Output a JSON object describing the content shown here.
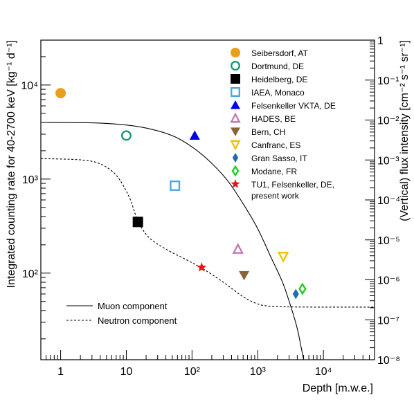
{
  "chart_data": {
    "type": "scatter",
    "xlabel": "Depth [m.w.e.]",
    "ylabel_left": "Integrated counting rate for 40-2700 keV [kg⁻¹ d⁻¹]",
    "ylabel_right": "(Vertical) flux intensity [cm⁻² s⁻¹ sr⁻¹]",
    "xscale": "log",
    "yscale": "log",
    "xlim": [
      0.5,
      60000
    ],
    "ylim_left": [
      12,
      30000
    ],
    "ylim_right": [
      1e-08,
      1
    ],
    "x_ticks": [
      {
        "value": 1,
        "label": "1"
      },
      {
        "value": 10,
        "label": "10"
      },
      {
        "value": 100,
        "label": "10²"
      },
      {
        "value": 1000,
        "label": "10³"
      },
      {
        "value": 10000,
        "label": "10⁴"
      }
    ],
    "y_left_ticks": [
      {
        "value": 100,
        "label": "10²"
      },
      {
        "value": 1000,
        "label": "10³"
      },
      {
        "value": 10000,
        "label": "10⁴"
      }
    ],
    "y_right_ticks": [
      {
        "value": 1e-08,
        "label": "10⁻⁸"
      },
      {
        "value": 1e-07,
        "label": "10⁻⁷"
      },
      {
        "value": 1e-06,
        "label": "10⁻⁶"
      },
      {
        "value": 1e-05,
        "label": "10⁻⁵"
      },
      {
        "value": 0.0001,
        "label": "10⁻⁴"
      },
      {
        "value": 0.001,
        "label": "10⁻³"
      },
      {
        "value": 0.01,
        "label": "10⁻²"
      },
      {
        "value": 0.1,
        "label": "10⁻¹"
      },
      {
        "value": 1,
        "label": "1"
      }
    ],
    "series": [
      {
        "name": "Seibersdorf, AT",
        "marker": "filled-circle",
        "color": "#e8a01a",
        "x": 1,
        "y": 8200
      },
      {
        "name": "Dortmund, DE",
        "marker": "open-circle",
        "color": "#1a9a74",
        "x": 10,
        "y": 2900
      },
      {
        "name": "Heidelberg, DE",
        "marker": "filled-square",
        "color": "#000000",
        "x": 15,
        "y": 350
      },
      {
        "name": "IAEA, Monaco",
        "marker": "open-square",
        "color": "#4aa9e0",
        "x": 55,
        "y": 850
      },
      {
        "name": "Felsenkeller VKTA, DE",
        "marker": "filled-triangle-up",
        "color": "#0000ee",
        "x": 110,
        "y": 2900
      },
      {
        "name": "HADES, BE",
        "marker": "open-triangle-up",
        "color": "#c47aaf",
        "x": 500,
        "y": 180
      },
      {
        "name": "Bern, CH",
        "marker": "filled-triangle-down",
        "color": "#8b6338",
        "x": 620,
        "y": 95
      },
      {
        "name": "Canfranc, ES",
        "marker": "open-triangle-down",
        "color": "#f2c200",
        "x": 2450,
        "y": 150
      },
      {
        "name": "Gran Sasso, IT",
        "marker": "filled-diamond",
        "color": "#1f6fb0",
        "x": 3800,
        "y": 60
      },
      {
        "name": "Modane, FR",
        "marker": "open-diamond",
        "color": "#22cc22",
        "x": 4800,
        "y": 68
      },
      {
        "name": "TU1, Felsenkeller, DE,",
        "name_line2": "present work",
        "marker": "star",
        "color": "#e81414",
        "x": 140,
        "y": 115
      }
    ],
    "curves": [
      {
        "name": "Muon component",
        "style": "solid",
        "axis": "right",
        "points": [
          [
            0.5,
            0.0087
          ],
          [
            3,
            0.0085
          ],
          [
            10,
            0.0075
          ],
          [
            25,
            0.0058
          ],
          [
            55,
            0.0038
          ],
          [
            110,
            0.0019
          ],
          [
            200,
            0.00082
          ],
          [
            350,
            0.0003
          ],
          [
            600,
            8e-05
          ],
          [
            1000,
            1.9e-05
          ],
          [
            1600,
            3.6e-06
          ],
          [
            2400,
            8.5e-07
          ],
          [
            3300,
            1.8e-07
          ],
          [
            4000,
            6e-08
          ],
          [
            4600,
            2e-08
          ],
          [
            5000,
            1e-08
          ]
        ]
      },
      {
        "name": "Neutron component",
        "style": "dashed",
        "axis": "left",
        "points": [
          [
            0.5,
            1650
          ],
          [
            2,
            1600
          ],
          [
            4,
            1450
          ],
          [
            7,
            1100
          ],
          [
            11,
            650
          ],
          [
            15,
            360
          ],
          [
            22,
            240
          ],
          [
            40,
            180
          ],
          [
            80,
            140
          ],
          [
            150,
            110
          ],
          [
            300,
            80
          ],
          [
            600,
            56
          ],
          [
            1000,
            47
          ],
          [
            1500,
            44.5
          ],
          [
            2500,
            43.8
          ],
          [
            10000,
            43.5
          ],
          [
            60000,
            43.5
          ]
        ]
      }
    ],
    "curve_legend_placement": "bottom-left",
    "marker_legend_placement": "top-right",
    "grid": false
  }
}
